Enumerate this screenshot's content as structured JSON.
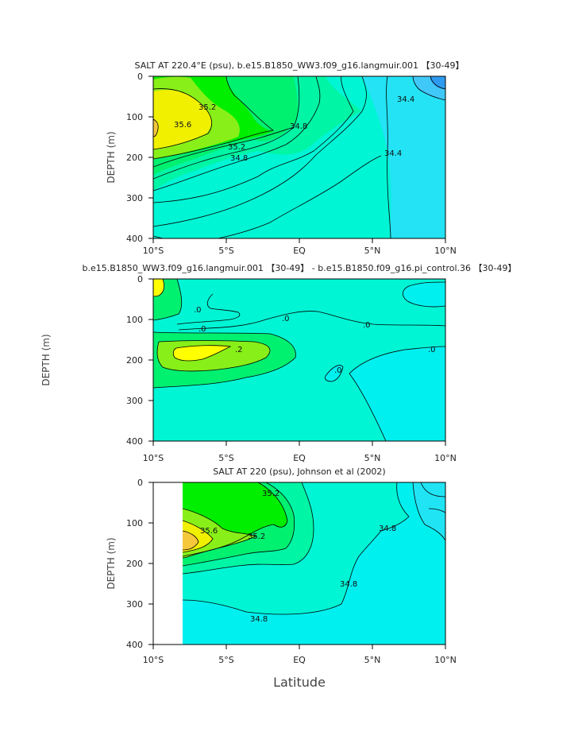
{
  "colors": {
    "c_low": "#2e9bf0",
    "c_34_2": "#40d8f8",
    "c_34_4": "#00f0f0",
    "c_34_6": "#00f5d5",
    "c_34_8": "#00f5a5",
    "c_35_0": "#00f070",
    "c_35_2": "#00ee00",
    "c_35_4": "#88f018",
    "c_35_6": "#f0f000",
    "c_35_8": "#f5c83c",
    "d_neg": "#00f0f0",
    "d_zero": "#00f5d5",
    "d_pos1": "#00f070",
    "d_pos2": "#88f018",
    "d_pos3": "#ffff00"
  },
  "x_label": "Latitude",
  "chart_data": [
    {
      "type": "contour",
      "title": "SALT AT 220.4°E (psu), b.e15.B1850_WW3.f09_g16.langmuir.001 【30-49】",
      "xlabel": "",
      "ylabel": "DEPTH (m)",
      "x_ticks": [
        "10°S",
        "5°S",
        "EQ",
        "5°N",
        "10°N"
      ],
      "y_ticks": [
        "0",
        "100",
        "200",
        "300",
        "400"
      ],
      "xlim": [
        -10,
        10
      ],
      "ylim": [
        0,
        400
      ],
      "contour_labels": [
        "35.2",
        "35.6",
        "34.8",
        "35.2",
        "34.8",
        "34.4",
        "34.4"
      ]
    },
    {
      "type": "contour",
      "title": "b.e15.B1850_WW3.f09_g16.langmuir.001 【30-49】 - b.e15.B1850.f09_g16.pi_control.36 【30-49】",
      "xlabel": "",
      "ylabel": "DEPTH (m)",
      "x_ticks": [
        "10°S",
        "5°S",
        "EQ",
        "5°N",
        "10°N"
      ],
      "y_ticks": [
        "0",
        "100",
        "200",
        "300",
        "400"
      ],
      "xlim": [
        -10,
        10
      ],
      "ylim": [
        0,
        400
      ],
      "contour_labels": [
        ".0",
        ".0",
        ".0",
        ".0",
        ".0",
        ".2",
        ".0"
      ]
    },
    {
      "type": "contour",
      "title": "SALT AT 220 (psu), Johnson et al (2002)",
      "xlabel": "Latitude",
      "ylabel": "DEPTH (m)",
      "x_ticks": [
        "10°S",
        "5°S",
        "EQ",
        "5°N",
        "10°N"
      ],
      "y_ticks": [
        "0",
        "100",
        "200",
        "300",
        "400"
      ],
      "xlim": [
        -10,
        10
      ],
      "ylim": [
        0,
        400
      ],
      "data_start_lat": -8,
      "contour_labels": [
        "35.2",
        "35.6",
        "35.2",
        "34.8",
        "34.8",
        "34.8"
      ]
    }
  ]
}
